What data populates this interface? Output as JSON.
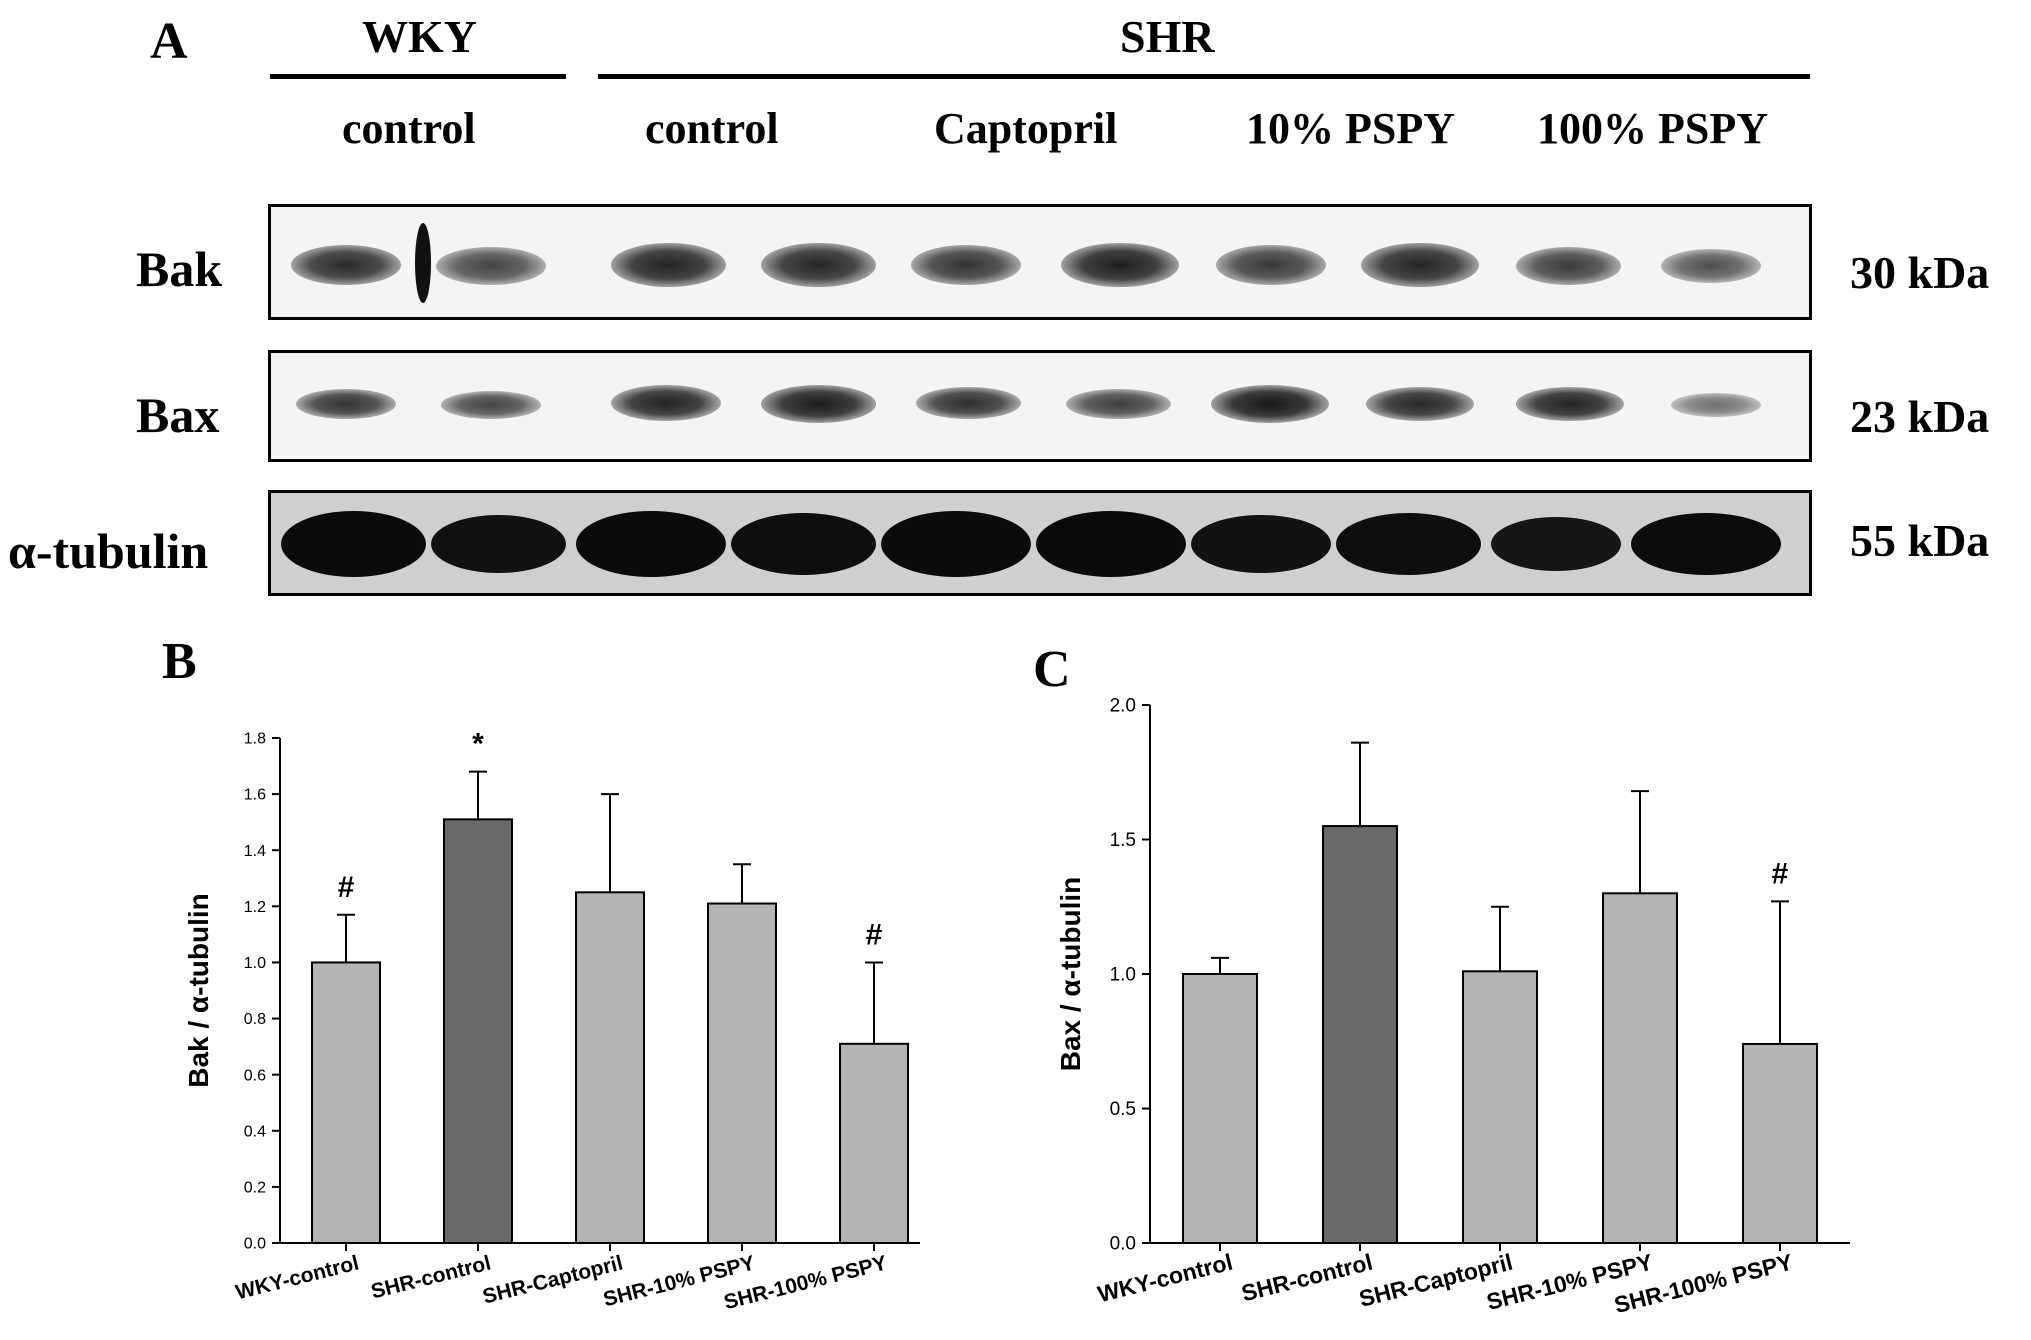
{
  "panel_a": {
    "letter": "A",
    "groups": [
      {
        "name": "WKY",
        "conditions": [
          "control"
        ]
      },
      {
        "name": "SHR",
        "conditions": [
          "control",
          "Captopril",
          "10% PSPY",
          "100% PSPY"
        ]
      }
    ],
    "blots": [
      {
        "protein": "Bak",
        "size": "30 kDa"
      },
      {
        "protein": "Bax",
        "size": "23 kDa"
      },
      {
        "protein": "α-tubulin",
        "size": "55 kDa"
      }
    ]
  },
  "chart_data": [
    {
      "panel": "B",
      "type": "bar",
      "categories": [
        "WKY-control",
        "SHR-control",
        "SHR-Captopril",
        "SHR-10% PSPY",
        "SHR-100% PSPY"
      ],
      "values": [
        1.0,
        1.51,
        1.25,
        1.21,
        0.71
      ],
      "errors": [
        0.17,
        0.17,
        0.35,
        0.14,
        0.29
      ],
      "annotations": [
        "#",
        "*",
        "",
        "",
        "#"
      ],
      "bar_colors": [
        "#b4b4b4",
        "#6a6a6a",
        "#b4b4b4",
        "#b4b4b4",
        "#b4b4b4"
      ],
      "ylabel": "Bak / α-tubulin",
      "ylim": [
        0,
        1.8
      ],
      "yticks": [
        "0.0",
        "0.2",
        "0.4",
        "0.6",
        "0.8",
        "1.0",
        "1.2",
        "1.4",
        "1.6",
        "1.8"
      ]
    },
    {
      "panel": "C",
      "type": "bar",
      "categories": [
        "WKY-control",
        "SHR-control",
        "SHR-Captopril",
        "SHR-10% PSPY",
        "SHR-100% PSPY"
      ],
      "values": [
        1.0,
        1.55,
        1.01,
        1.3,
        0.74
      ],
      "errors": [
        0.06,
        0.31,
        0.24,
        0.38,
        0.53
      ],
      "annotations": [
        "",
        "",
        "",
        "",
        "#"
      ],
      "bar_colors": [
        "#b4b4b4",
        "#6a6a6a",
        "#b4b4b4",
        "#b4b4b4",
        "#b4b4b4"
      ],
      "ylabel": "Bax / α-tubulin",
      "ylim": [
        0,
        2.0
      ],
      "yticks": [
        "0.0",
        "0.5",
        "1.0",
        "1.5",
        "2.0"
      ]
    }
  ]
}
